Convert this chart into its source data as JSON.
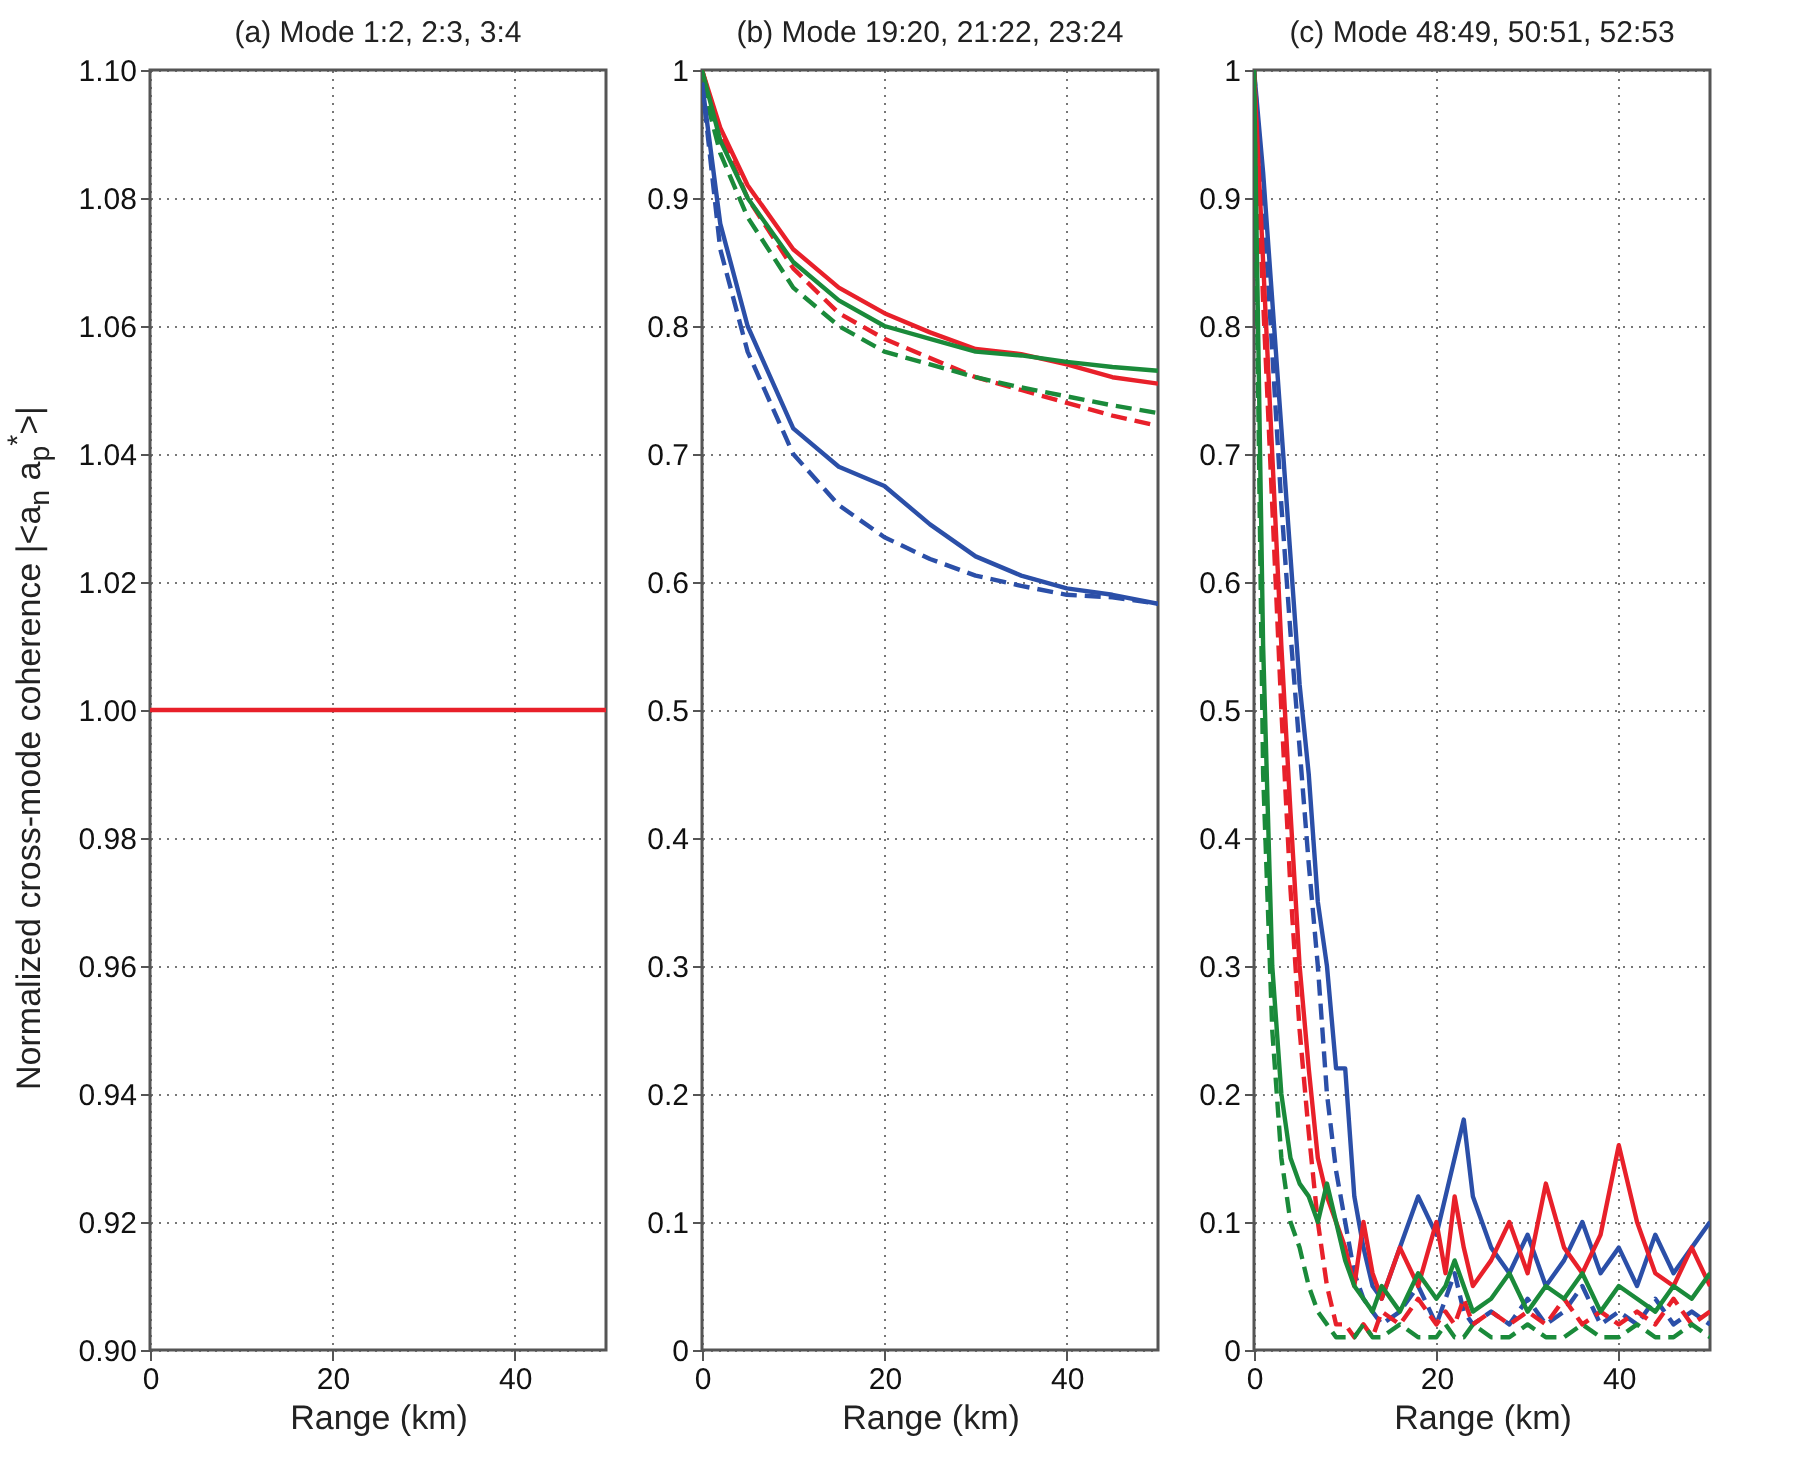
{
  "chart_data": [
    {
      "type": "line",
      "title": "(a) Mode 1:2, 2:3, 3:4",
      "xlabel": "Range (km)",
      "ylabel": "Normalized cross-mode coherence |<a$_{n}$ a$_{p}$$^{*}$>|",
      "xlim": [
        0,
        50
      ],
      "xticks": [
        0,
        20,
        40
      ],
      "ylim": [
        0.9,
        1.1
      ],
      "yticks": [
        {
          "value": 0.9,
          "label": "0.90"
        },
        0.92,
        0.94,
        0.96,
        0.98,
        {
          "value": 1,
          "label": "1.00"
        },
        1.02,
        1.04,
        1.06,
        1.08,
        {
          "value": 1.1,
          "label": "1.10"
        }
      ],
      "grid": true,
      "series": [
        {
          "color": "#e8202a",
          "line_style": "solid",
          "x": [
            0,
            50
          ],
          "values": [
            1,
            1
          ]
        }
      ]
    },
    {
      "type": "line",
      "title": "(b) Mode 19:20, 21:22, 23:24",
      "xlabel": "Range (km)",
      "xlim": [
        0,
        50
      ],
      "xticks": [
        0,
        20,
        40
      ],
      "ylim": [
        0,
        1
      ],
      "yticks": [
        0,
        0.1,
        0.2,
        0.3,
        0.4,
        0.5,
        0.6,
        0.7,
        0.8,
        0.9,
        1
      ],
      "grid": true,
      "series": [
        {
          "color": "#e8202a",
          "line_style": "solid",
          "x": [
            0,
            2,
            5,
            10,
            15,
            20,
            25,
            30,
            35,
            40,
            45,
            50
          ],
          "values": [
            1,
            0.955,
            0.91,
            0.86,
            0.83,
            0.81,
            0.795,
            0.782,
            0.778,
            0.77,
            0.76,
            0.755
          ]
        },
        {
          "color": "#e8202a",
          "line_style": "dashed",
          "x": [
            0,
            2,
            5,
            10,
            15,
            20,
            25,
            30,
            35,
            40,
            45,
            50
          ],
          "values": [
            1,
            0.95,
            0.9,
            0.845,
            0.81,
            0.79,
            0.775,
            0.76,
            0.75,
            0.74,
            0.73,
            0.722
          ]
        },
        {
          "color": "#1a8a3a",
          "line_style": "solid",
          "x": [
            0,
            2,
            5,
            10,
            15,
            20,
            25,
            30,
            35,
            40,
            45,
            50
          ],
          "values": [
            1,
            0.945,
            0.9,
            0.85,
            0.82,
            0.8,
            0.79,
            0.78,
            0.777,
            0.772,
            0.768,
            0.765
          ]
        },
        {
          "color": "#1a8a3a",
          "line_style": "dashed",
          "x": [
            0,
            2,
            5,
            10,
            15,
            20,
            25,
            30,
            35,
            40,
            45,
            50
          ],
          "values": [
            0.99,
            0.935,
            0.885,
            0.83,
            0.8,
            0.78,
            0.77,
            0.76,
            0.752,
            0.745,
            0.738,
            0.732
          ]
        },
        {
          "color": "#2b4fa8",
          "line_style": "solid",
          "x": [
            0,
            2,
            5,
            10,
            15,
            20,
            25,
            30,
            35,
            40,
            45,
            50
          ],
          "values": [
            0.99,
            0.88,
            0.8,
            0.72,
            0.69,
            0.675,
            0.645,
            0.62,
            0.605,
            0.595,
            0.59,
            0.583
          ]
        },
        {
          "color": "#2b4fa8",
          "line_style": "dashed",
          "x": [
            0,
            2,
            5,
            10,
            15,
            20,
            25,
            30,
            35,
            40,
            45,
            50
          ],
          "values": [
            0.99,
            0.86,
            0.78,
            0.7,
            0.66,
            0.635,
            0.618,
            0.605,
            0.597,
            0.59,
            0.588,
            0.583
          ]
        }
      ]
    },
    {
      "type": "line",
      "title": "(c) Mode 48:49, 50:51, 52:53",
      "xlabel": "Range (km)",
      "xlim": [
        0,
        50
      ],
      "xticks": [
        0,
        20,
        40
      ],
      "ylim": [
        0,
        1
      ],
      "yticks": [
        0,
        0.1,
        0.2,
        0.3,
        0.4,
        0.5,
        0.6,
        0.7,
        0.8,
        0.9,
        1
      ],
      "grid": true,
      "series": [
        {
          "color": "#2b4fa8",
          "line_style": "solid",
          "x": [
            0,
            1,
            2,
            3,
            4,
            5,
            6,
            7,
            8,
            9,
            10,
            11,
            12,
            13,
            14,
            16,
            18,
            20,
            21,
            22,
            23,
            24,
            26,
            28,
            30,
            32,
            34,
            36,
            38,
            40,
            42,
            44,
            46,
            48,
            50
          ],
          "values": [
            1,
            0.92,
            0.82,
            0.72,
            0.62,
            0.52,
            0.45,
            0.35,
            0.3,
            0.22,
            0.22,
            0.12,
            0.08,
            0.05,
            0.04,
            0.08,
            0.12,
            0.09,
            0.12,
            0.15,
            0.18,
            0.12,
            0.08,
            0.06,
            0.09,
            0.05,
            0.07,
            0.1,
            0.06,
            0.08,
            0.05,
            0.09,
            0.06,
            0.08,
            0.1
          ]
        },
        {
          "color": "#2b4fa8",
          "line_style": "dashed",
          "x": [
            0,
            1,
            2,
            3,
            4,
            5,
            6,
            7,
            8,
            9,
            10,
            11,
            12,
            13,
            14,
            16,
            18,
            20,
            21,
            22,
            23,
            24,
            26,
            28,
            30,
            32,
            34,
            36,
            38,
            40,
            42,
            44,
            46,
            48,
            50
          ],
          "values": [
            1,
            0.9,
            0.78,
            0.66,
            0.56,
            0.47,
            0.38,
            0.3,
            0.2,
            0.14,
            0.1,
            0.06,
            0.04,
            0.03,
            0.02,
            0.03,
            0.05,
            0.02,
            0.04,
            0.06,
            0.03,
            0.02,
            0.03,
            0.02,
            0.04,
            0.02,
            0.03,
            0.05,
            0.02,
            0.03,
            0.02,
            0.04,
            0.02,
            0.03,
            0.02
          ]
        },
        {
          "color": "#e8202a",
          "line_style": "solid",
          "x": [
            0,
            1,
            2,
            3,
            4,
            5,
            6,
            7,
            8,
            9,
            10,
            11,
            12,
            13,
            14,
            16,
            18,
            20,
            21,
            22,
            23,
            24,
            26,
            28,
            30,
            32,
            34,
            36,
            38,
            40,
            42,
            44,
            46,
            48,
            50
          ],
          "values": [
            1,
            0.85,
            0.7,
            0.55,
            0.42,
            0.3,
            0.22,
            0.15,
            0.12,
            0.1,
            0.08,
            0.05,
            0.1,
            0.06,
            0.04,
            0.08,
            0.05,
            0.1,
            0.06,
            0.12,
            0.08,
            0.05,
            0.07,
            0.1,
            0.06,
            0.13,
            0.08,
            0.06,
            0.09,
            0.16,
            0.1,
            0.06,
            0.05,
            0.08,
            0.05
          ]
        },
        {
          "color": "#e8202a",
          "line_style": "dashed",
          "x": [
            0,
            1,
            2,
            3,
            4,
            5,
            6,
            7,
            8,
            9,
            10,
            11,
            12,
            13,
            14,
            16,
            18,
            20,
            21,
            22,
            23,
            24,
            26,
            28,
            30,
            32,
            34,
            36,
            38,
            40,
            42,
            44,
            46,
            48,
            50
          ],
          "values": [
            1,
            0.82,
            0.66,
            0.5,
            0.36,
            0.25,
            0.17,
            0.1,
            0.05,
            0.02,
            0.02,
            0.01,
            0.02,
            0.01,
            0.03,
            0.02,
            0.04,
            0.02,
            0.03,
            0.02,
            0.04,
            0.02,
            0.03,
            0.02,
            0.03,
            0.02,
            0.04,
            0.02,
            0.03,
            0.02,
            0.03,
            0.02,
            0.04,
            0.02,
            0.03
          ]
        },
        {
          "color": "#1a8a3a",
          "line_style": "solid",
          "x": [
            0,
            1,
            2,
            3,
            4,
            5,
            6,
            7,
            8,
            9,
            10,
            11,
            12,
            13,
            14,
            16,
            18,
            20,
            21,
            22,
            23,
            24,
            26,
            28,
            30,
            32,
            34,
            36,
            38,
            40,
            42,
            44,
            46,
            48,
            50
          ],
          "values": [
            1,
            0.55,
            0.3,
            0.2,
            0.15,
            0.13,
            0.12,
            0.1,
            0.13,
            0.1,
            0.07,
            0.05,
            0.04,
            0.03,
            0.05,
            0.03,
            0.06,
            0.04,
            0.05,
            0.07,
            0.05,
            0.03,
            0.04,
            0.06,
            0.03,
            0.05,
            0.04,
            0.06,
            0.03,
            0.05,
            0.04,
            0.03,
            0.05,
            0.04,
            0.06
          ]
        },
        {
          "color": "#1a8a3a",
          "line_style": "dashed",
          "x": [
            0,
            1,
            2,
            3,
            4,
            5,
            6,
            7,
            8,
            9,
            10,
            11,
            12,
            13,
            14,
            16,
            18,
            20,
            21,
            22,
            23,
            24,
            26,
            28,
            30,
            32,
            34,
            36,
            38,
            40,
            42,
            44,
            46,
            48,
            50
          ],
          "values": [
            1,
            0.45,
            0.25,
            0.15,
            0.1,
            0.08,
            0.05,
            0.03,
            0.02,
            0.01,
            0.01,
            0.01,
            0.02,
            0.01,
            0.01,
            0.02,
            0.01,
            0.01,
            0.02,
            0.01,
            0.01,
            0.02,
            0.01,
            0.01,
            0.02,
            0.01,
            0.01,
            0.02,
            0.01,
            0.01,
            0.02,
            0.01,
            0.01,
            0.02,
            0.01
          ]
        }
      ]
    }
  ]
}
